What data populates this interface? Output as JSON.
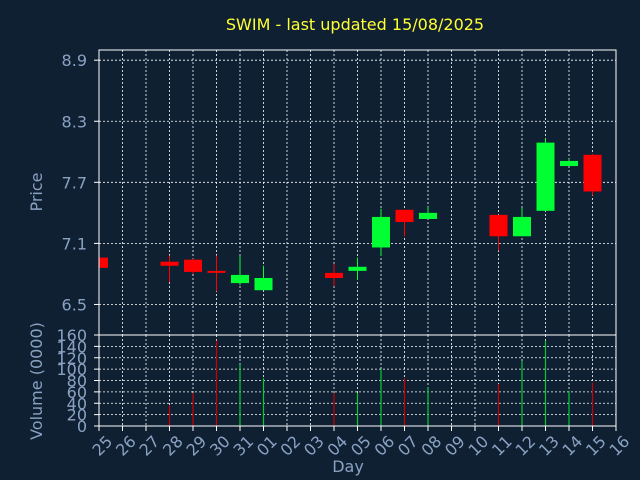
{
  "colors": {
    "background": "#0f2033",
    "plot_background": "#0f2033",
    "title": "#ffff33",
    "axis_label": "#8aa2c2",
    "tick_label": "#8aa2c2",
    "grid": "#ffffff",
    "frame": "#ffffff",
    "up": "#00ff33",
    "down": "#ff0000",
    "vol_up": "#00cc33",
    "vol_down": "#cc0000"
  },
  "chart_data": [
    {
      "type": "candlestick",
      "title": "SWIM - last updated 15/08/2025",
      "ylabel": "Price",
      "ylim": [
        6.2,
        9.0
      ],
      "yticks": [
        "6.5",
        "7.1",
        "7.7",
        "8.3",
        "8.9"
      ],
      "grid": true,
      "candles": [
        {
          "day": "25",
          "open": 6.96,
          "close": 6.86,
          "high": 6.96,
          "low": 6.86
        },
        {
          "day": "28",
          "open": 6.92,
          "close": 6.88,
          "high": 6.98,
          "low": 6.72
        },
        {
          "day": "29",
          "open": 6.94,
          "close": 6.82,
          "high": 6.95,
          "low": 6.8
        },
        {
          "day": "30",
          "open": 6.83,
          "close": 6.82,
          "high": 6.98,
          "low": 6.63
        },
        {
          "day": "31",
          "open": 6.71,
          "close": 6.79,
          "high": 6.98,
          "low": 6.69
        },
        {
          "day": "01",
          "open": 6.64,
          "close": 6.76,
          "high": 6.88,
          "low": 6.64
        },
        {
          "day": "04",
          "open": 6.81,
          "close": 6.76,
          "high": 6.9,
          "low": 6.68
        },
        {
          "day": "05",
          "open": 6.83,
          "close": 6.87,
          "high": 6.96,
          "low": 6.74
        },
        {
          "day": "06",
          "open": 7.06,
          "close": 7.36,
          "high": 7.44,
          "low": 6.98
        },
        {
          "day": "07",
          "open": 7.43,
          "close": 7.31,
          "high": 7.43,
          "low": 7.17
        },
        {
          "day": "08",
          "open": 7.34,
          "close": 7.4,
          "high": 7.46,
          "low": 7.34
        },
        {
          "day": "11",
          "open": 7.38,
          "close": 7.17,
          "high": 7.38,
          "low": 7.03
        },
        {
          "day": "12",
          "open": 7.17,
          "close": 7.36,
          "high": 7.45,
          "low": 7.17
        },
        {
          "day": "13",
          "open": 7.42,
          "close": 8.09,
          "high": 8.13,
          "low": 7.42
        },
        {
          "day": "14",
          "open": 7.86,
          "close": 7.91,
          "high": 7.93,
          "low": 7.86
        },
        {
          "day": "15",
          "open": 7.97,
          "close": 7.61,
          "high": 7.98,
          "low": 7.57
        }
      ]
    },
    {
      "type": "bar",
      "ylabel": "Volume (0000)",
      "xlabel": "Day",
      "ylim": [
        0,
        160
      ],
      "yticks": [
        "0",
        "20",
        "40",
        "60",
        "80",
        "100",
        "120",
        "140",
        "160"
      ],
      "grid": true,
      "categories": [
        "25",
        "26",
        "27",
        "28",
        "29",
        "30",
        "31",
        "01",
        "02",
        "03",
        "04",
        "05",
        "06",
        "07",
        "08",
        "09",
        "10",
        "11",
        "12",
        "13",
        "14",
        "15",
        "16"
      ],
      "volumes": [
        {
          "day": "25",
          "value": 0,
          "up": false
        },
        {
          "day": "28",
          "value": 36,
          "up": false
        },
        {
          "day": "29",
          "value": 58,
          "up": false
        },
        {
          "day": "30",
          "value": 150,
          "up": false
        },
        {
          "day": "31",
          "value": 108,
          "up": true
        },
        {
          "day": "01",
          "value": 84,
          "up": true
        },
        {
          "day": "04",
          "value": 58,
          "up": false
        },
        {
          "day": "05",
          "value": 58,
          "up": true
        },
        {
          "day": "06",
          "value": 100,
          "up": true
        },
        {
          "day": "07",
          "value": 84,
          "up": false
        },
        {
          "day": "08",
          "value": 68,
          "up": true
        },
        {
          "day": "11",
          "value": 74,
          "up": false
        },
        {
          "day": "12",
          "value": 114,
          "up": true
        },
        {
          "day": "13",
          "value": 150,
          "up": true
        },
        {
          "day": "14",
          "value": 62,
          "up": true
        },
        {
          "day": "15",
          "value": 76,
          "up": false
        }
      ]
    }
  ]
}
